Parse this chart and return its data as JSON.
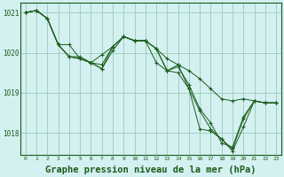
{
  "background_color": "#d4f0f0",
  "grid_color": "#99ccbb",
  "line_color": "#1a5c1a",
  "marker_color": "#1a5c1a",
  "xlabel": "Graphe pression niveau de la mer (hPa)",
  "xlabel_fontsize": 7.5,
  "ylim": [
    1017.45,
    1021.25
  ],
  "xlim": [
    -0.5,
    23.5
  ],
  "yticks": [
    1018,
    1019,
    1020,
    1021
  ],
  "xticks": [
    0,
    1,
    2,
    3,
    4,
    5,
    6,
    7,
    8,
    9,
    10,
    11,
    12,
    13,
    14,
    15,
    16,
    17,
    18,
    19,
    20,
    21,
    22,
    23
  ],
  "series": [
    [
      1021.0,
      1021.05,
      1020.85,
      1020.2,
      1019.9,
      1019.85,
      1019.75,
      1019.95,
      1020.15,
      1020.4,
      1020.3,
      1020.3,
      1020.1,
      1019.85,
      1019.7,
      1019.55,
      1019.35,
      1019.1,
      1018.85,
      1018.8,
      1018.85,
      1018.8,
      1018.75,
      1018.75
    ],
    [
      1021.0,
      1021.05,
      1020.85,
      1020.2,
      1020.2,
      1019.85,
      1019.75,
      1019.6,
      1020.15,
      1020.4,
      1020.3,
      1020.3,
      1019.75,
      1019.55,
      1019.7,
      1019.1,
      1018.55,
      1018.1,
      1017.85,
      1017.6,
      1018.35,
      1018.8,
      1018.75,
      1018.75
    ],
    [
      1021.0,
      1021.05,
      1020.85,
      1020.2,
      1019.9,
      1019.85,
      1019.75,
      1019.6,
      1020.05,
      1020.4,
      1020.3,
      1020.3,
      1020.1,
      1019.55,
      1019.5,
      1019.1,
      1018.1,
      1018.05,
      1017.85,
      1017.55,
      1018.15,
      1018.8,
      1018.75,
      1018.75
    ],
    [
      1021.0,
      1021.05,
      1020.85,
      1020.2,
      1019.9,
      1019.9,
      1019.75,
      1019.7,
      1020.15,
      1020.4,
      1020.3,
      1020.3,
      1020.1,
      1019.55,
      1019.65,
      1019.2,
      1018.6,
      1018.25,
      1017.75,
      1017.65,
      1018.4,
      1018.8,
      1018.75,
      1018.75
    ]
  ]
}
